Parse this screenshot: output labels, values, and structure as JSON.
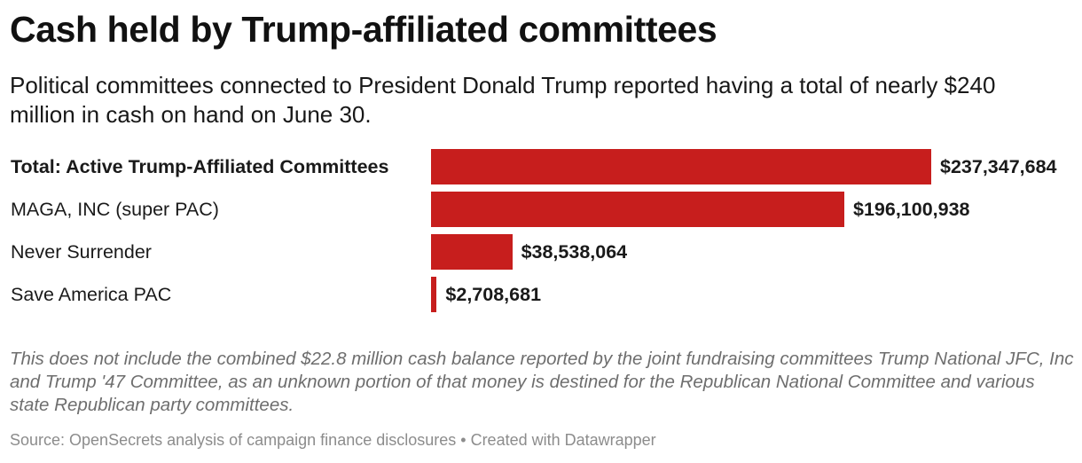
{
  "chart_data": {
    "type": "bar",
    "orientation": "horizontal",
    "title": "Cash held by Trump-affiliated committees",
    "subtitle": "Political committees connected to President Donald Trump reported having a total of nearly $240 million in cash on hand on June 30.",
    "categories": [
      "Total: Active Trump-Affiliated Committees",
      "MAGA, INC (super PAC)",
      "Never Surrender",
      "Save America PAC"
    ],
    "values": [
      237347684,
      196100938,
      38538064,
      2708681
    ],
    "value_labels": [
      "$237,347,684",
      "$196,100,938",
      "$38,538,064",
      "$2,708,681"
    ],
    "bold_categories": [
      true,
      false,
      false,
      false
    ],
    "xlim": [
      0,
      237347684
    ],
    "bar_color": "#c71e1d",
    "grid": false,
    "legend": "none"
  },
  "notes": "This does not include the combined $22.8 million cash balance reported by the joint fundraising committees Trump National JFC, Inc and Trump '47 Committee, as an unknown portion of that money is destined for the Republican National Committee and various state Republican party committees.",
  "footer": {
    "text": "Source: OpenSecrets analysis of campaign finance disclosures • Created with Datawrapper"
  }
}
